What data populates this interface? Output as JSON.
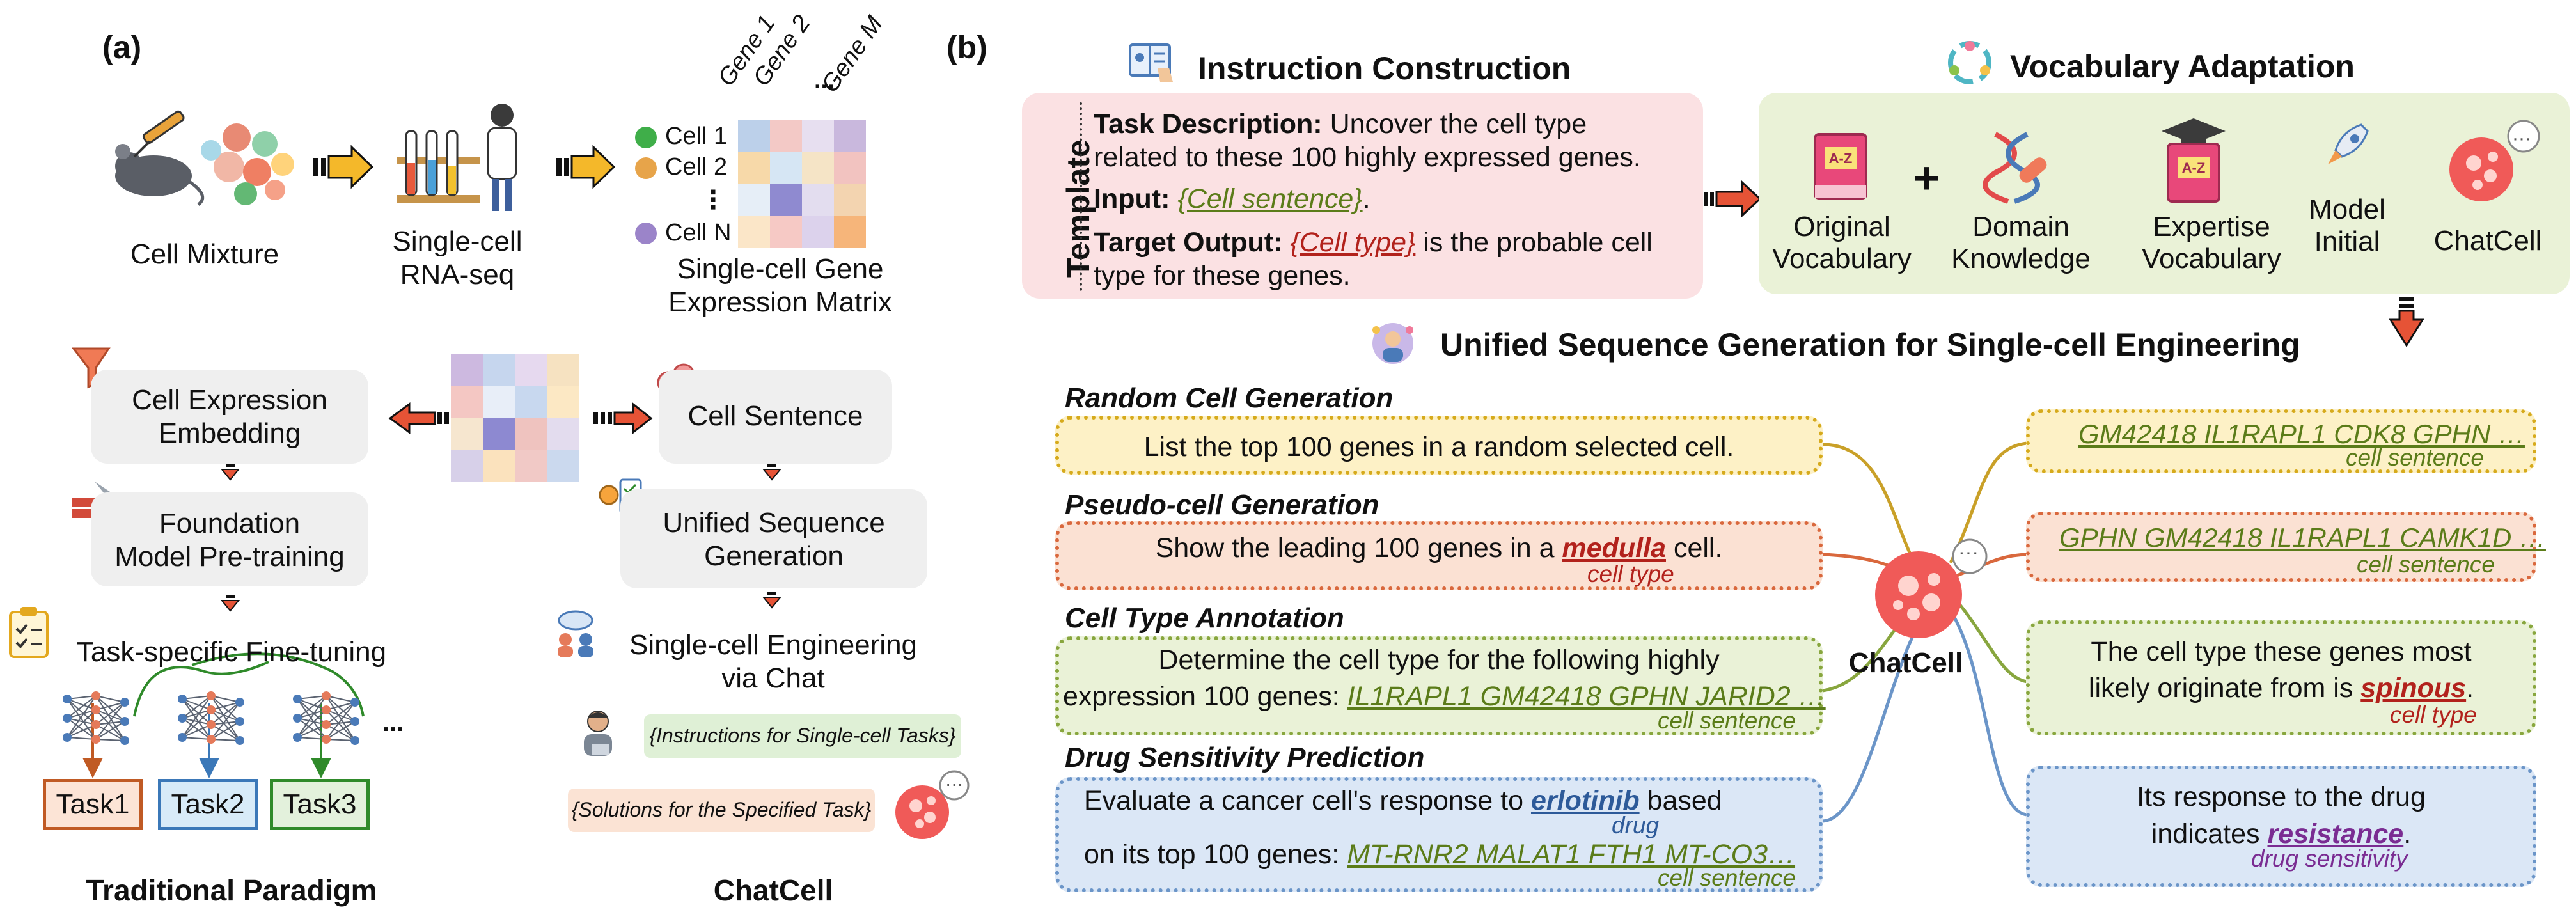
{
  "panel_a": {
    "label": "(a)",
    "cell_mixture": "Cell Mixture",
    "scrna": [
      "Single-cell",
      "RNA-seq"
    ],
    "matrix_title": [
      "Single-cell Gene",
      "Expression Matrix"
    ],
    "gene_cols": [
      "Gene 1",
      "Gene 2",
      "...",
      "Gene M"
    ],
    "cell_rows": [
      "Cell 1",
      "Cell 2",
      "⋮",
      "Cell N"
    ],
    "cell_dot_colors": [
      "#3fae49",
      "#e7a44a",
      "#ffffff",
      "#9b84c9"
    ],
    "matrix_colors": [
      "#bcd0ea",
      "#f3c9c6",
      "#e7dff0",
      "#c9b8dd",
      "#f7d9a9",
      "#d6e6f4",
      "#f5e4c6",
      "#f2c3c0",
      "#e6eef7",
      "#8f8ad0",
      "#e3ddef",
      "#f3d4b0",
      "#fbe6c8",
      "#f6c9c5",
      "#dcd2ec",
      "#f6b57a"
    ],
    "heat_colors": [
      "#cdb9e0",
      "#c6d6ee",
      "#e6d9ef",
      "#f6e2c1",
      "#f4c7c3",
      "#e8eef8",
      "#c8d8ef",
      "#fce8c4",
      "#f6e6cf",
      "#8d89d1",
      "#efc3bf",
      "#e3dcee",
      "#d7d0e9",
      "#fbe2bd",
      "#f1c9c6",
      "#cbd9ee"
    ],
    "cell_expr_embedding": [
      "Cell Expression",
      "Embedding"
    ],
    "foundation": [
      "Foundation",
      "Model Pre-training"
    ],
    "task_ft": "Task-specific Fine-tuning",
    "tasks": [
      "Task1",
      "Task2",
      "Task3"
    ],
    "task_colors": [
      "#c05a24",
      "#3b78b8",
      "#2f8a2a"
    ],
    "task_fills": [
      "#fce4d6",
      "#d8ebf8",
      "#e3f1dc"
    ],
    "ellipsis": "...",
    "cell_sentence": "Cell Sentence",
    "unified_seq": [
      "Unified Sequence",
      "Generation"
    ],
    "sc_eng_chat": [
      "Single-cell Engineering",
      "via Chat"
    ],
    "instr_bubble": "{Instructions for Single-cell Tasks}",
    "sol_bubble": "{Solutions for the Specified Task}",
    "chat_dots": "···",
    "traditional": "Traditional Paradigm",
    "chatcell": "ChatCell"
  },
  "panel_b": {
    "label": "(b)",
    "instr_construction": "Instruction Construction",
    "vocab_adaptation": "Vocabulary Adaptation",
    "template": "Template",
    "task_desc_label": "Task Description:",
    "task_desc_text1": " Uncover the cell type",
    "task_desc_text2": "related to these 100 highly expressed genes.",
    "input_label": "Input:",
    "input_value": "{Cell sentence}",
    "input_end": ".",
    "target_label": "Target Output:",
    "target_value": "{Cell type}",
    "target_text1": " is the probable cell",
    "target_text2": "type for these genes.",
    "original_vocab": [
      "Original",
      "Vocabulary"
    ],
    "plus": "+",
    "domain_knowledge": [
      "Domain",
      "Knowledge"
    ],
    "expertise_vocab": [
      "Expertise",
      "Vocabulary"
    ],
    "model_initial": [
      "Model",
      "Initial"
    ],
    "chatcell": "ChatCell",
    "az": "A-Z",
    "unified_title": "Unified Sequence Generation for Single-cell Engineering",
    "tasks": [
      {
        "title": "Random Cell Generation",
        "text": "List the top 100 genes in a random selected cell.",
        "border": "#d6aa1c",
        "fill": "#fdf1c6"
      },
      {
        "title": "Pseudo-cell Generation",
        "text_pre": "Show the leading 100 genes in a ",
        "highlight": "medulla",
        "text_post": " cell.",
        "sub": "cell type",
        "border": "#d9683d",
        "fill": "#fbe1d3"
      },
      {
        "title": "Cell Type Annotation",
        "line1": "Determine the cell type for the following highly",
        "line2_pre": "expression 100 genes: ",
        "genes": "IL1RAPL1 GM42418 GPHN JARID2 …",
        "sub": "cell sentence",
        "border": "#88a63e",
        "fill": "#eaf2d7"
      },
      {
        "title": "Drug Sensitivity Prediction",
        "line1_pre": "Evaluate a cancer cell's response to ",
        "drug": "erlotinib",
        "line1_post": " based",
        "drug_sub": "drug",
        "line2_pre": "on its top 100 genes: ",
        "genes": "MT-RNR2 MALAT1 FTH1 MT-CO3…",
        "sub": "cell sentence",
        "border": "#6b95c8",
        "fill": "#dbe7f6"
      }
    ],
    "center": "ChatCell",
    "outputs": [
      {
        "genes": "GM42418 IL1RAPL1 CDK8 GPHN …",
        "sub": "cell sentence",
        "border": "#d6aa1c",
        "fill": "#fdf1c6"
      },
      {
        "genes": "GPHN GM42418 IL1RAPL1 CAMK1D …",
        "sub": "cell sentence",
        "border": "#d9683d",
        "fill": "#fbe1d3"
      },
      {
        "line1": "The cell type these genes most",
        "line2_pre": "likely originate from is ",
        "highlight": "spinous",
        "line2_post": ".",
        "sub": "cell type",
        "border": "#88a63e",
        "fill": "#eaf2d7"
      },
      {
        "line1": "Its response to the drug",
        "line2_pre": "indicates ",
        "highlight": "resistance",
        "line2_post": ".",
        "sub": "drug sensitivity",
        "border": "#6b95c8",
        "fill": "#dbe7f6"
      }
    ]
  }
}
